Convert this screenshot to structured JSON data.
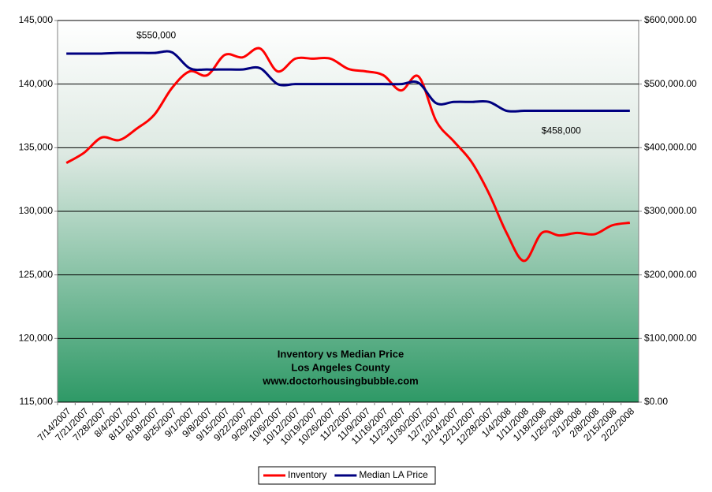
{
  "chart_data": {
    "type": "line",
    "title_lines": [
      "Inventory vs Median Price",
      "Los Angeles County",
      "www.doctorhousingbubble.com"
    ],
    "categories": [
      "7/14/2007",
      "7/21/2007",
      "7/28/2007",
      "8/4/2007",
      "8/11/2007",
      "8/18/2007",
      "8/25/2007",
      "9/1/2007",
      "9/8/2007",
      "9/15/2007",
      "9/22/2007",
      "9/29/2007",
      "10/6/2007",
      "10/12/2007",
      "10/19/2007",
      "10/26/2007",
      "11/2/2007",
      "11/9/2007",
      "11/16/2007",
      "11/23/2007",
      "11/30/2007",
      "12/7/2007",
      "12/14/2007",
      "12/21/2007",
      "12/28/2007",
      "1/4/2008",
      "1/11/2008",
      "1/18/2008",
      "1/25/2008",
      "2/1/2008",
      "2/8/2008",
      "2/15/2008",
      "2/22/2008"
    ],
    "series": [
      {
        "name": "Inventory",
        "color": "#ff0000",
        "axis": "y",
        "values": [
          133800,
          134600,
          135800,
          135600,
          136500,
          137600,
          139700,
          141000,
          140700,
          142300,
          142100,
          142800,
          141000,
          142000,
          142000,
          142000,
          141200,
          141000,
          140700,
          139500,
          140600,
          137100,
          135500,
          133900,
          131400,
          128300,
          126100,
          128300,
          128100,
          128300,
          128200,
          128900,
          129100
        ]
      },
      {
        "name": "Median LA Price",
        "color": "#000080",
        "axis": "y2",
        "values": [
          548000,
          548000,
          548000,
          549000,
          549000,
          549000,
          550000,
          525000,
          523000,
          523000,
          523000,
          525000,
          500000,
          500000,
          500000,
          500000,
          500000,
          500000,
          500000,
          500000,
          502000,
          470000,
          472000,
          472000,
          472000,
          458000,
          458000,
          458000,
          458000,
          458000,
          458000,
          458000,
          458000
        ]
      }
    ],
    "annotations": [
      {
        "text": "$550,000",
        "index": 6,
        "series": 1
      },
      {
        "text": "$458,000",
        "index": 29,
        "series": 1
      }
    ],
    "ylim": [
      115000,
      145000
    ],
    "yticks": [
      {
        "value": 115000,
        "label": "115,000"
      },
      {
        "value": 120000,
        "label": "120,000"
      },
      {
        "value": 125000,
        "label": "125,000"
      },
      {
        "value": 130000,
        "label": "130,000"
      },
      {
        "value": 135000,
        "label": "135,000"
      },
      {
        "value": 140000,
        "label": "140,000"
      },
      {
        "value": 145000,
        "label": "145,000"
      }
    ],
    "y2lim": [
      0,
      600000
    ],
    "y2ticks": [
      {
        "value": 0,
        "label": "$0.00"
      },
      {
        "value": 100000,
        "label": "$100,000.00"
      },
      {
        "value": 200000,
        "label": "$200,000.00"
      },
      {
        "value": 300000,
        "label": "$300,000.00"
      },
      {
        "value": 400000,
        "label": "$400,000.00"
      },
      {
        "value": 500000,
        "label": "$500,000.00"
      },
      {
        "value": 600000,
        "label": "$600,000.00"
      }
    ],
    "grid": true,
    "legend": "bottom"
  }
}
